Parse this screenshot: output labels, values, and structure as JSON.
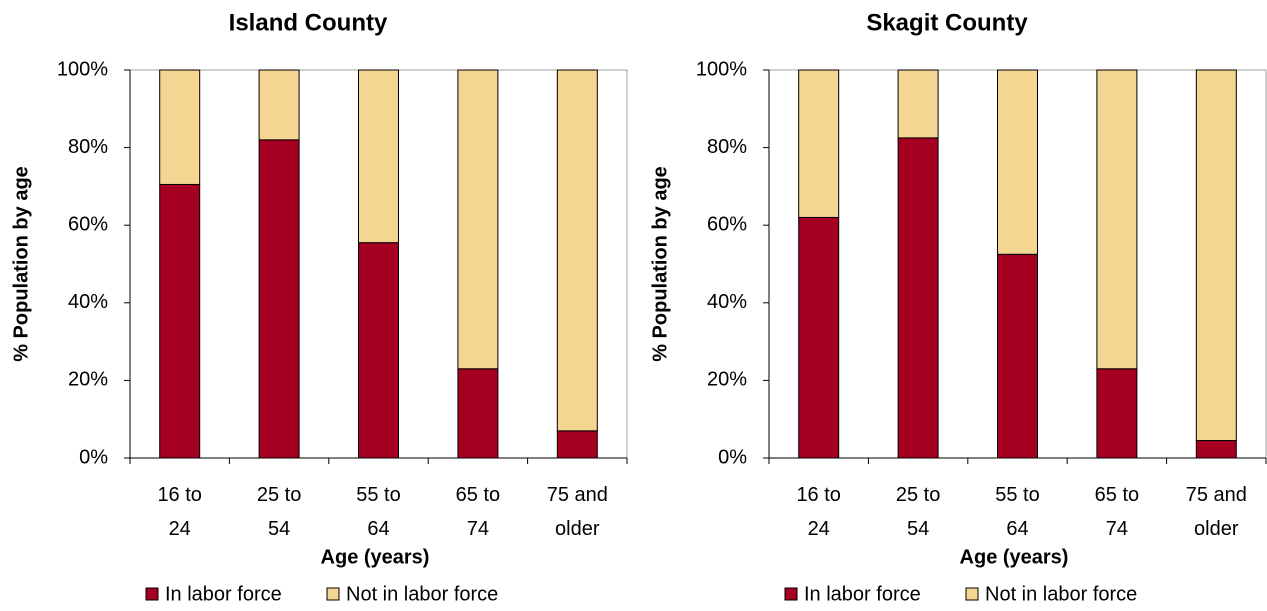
{
  "chart_data": [
    {
      "type": "bar",
      "stacked": true,
      "title": "Island County",
      "x_label": "Age (years)",
      "y_label": "% Population by age",
      "categories": [
        "16 to 24",
        "25 to 54",
        "55 to 64",
        "65 to 74",
        "75 and older"
      ],
      "series": [
        {
          "name": "In labor force",
          "color": "#a50021",
          "values": [
            70.5,
            82,
            55.5,
            23,
            7
          ]
        },
        {
          "name": "Not in labor force",
          "color": "#f5d592",
          "values": [
            29.5,
            18,
            44.5,
            77,
            93
          ]
        }
      ],
      "ylim": [
        0,
        100
      ],
      "yticks": [
        {
          "value": 0,
          "label": "0%"
        },
        {
          "value": 20,
          "label": "20%"
        },
        {
          "value": 40,
          "label": "40%"
        },
        {
          "value": 60,
          "label": "60%"
        },
        {
          "value": 80,
          "label": "80%"
        },
        {
          "value": 100,
          "label": "100%"
        }
      ],
      "legend": "bottom"
    },
    {
      "type": "bar",
      "stacked": true,
      "title": "Skagit County",
      "x_label": "Age (years)",
      "y_label": "% Population by age",
      "categories": [
        "16 to 24",
        "25 to 54",
        "55 to 64",
        "65 to 74",
        "75 and older"
      ],
      "series": [
        {
          "name": "In labor force",
          "color": "#a50021",
          "values": [
            62,
            82.5,
            52.5,
            23,
            4.5
          ]
        },
        {
          "name": "Not in labor force",
          "color": "#f5d592",
          "values": [
            38,
            17.5,
            47.5,
            77,
            95.5
          ]
        }
      ],
      "ylim": [
        0,
        100
      ],
      "yticks": [
        {
          "value": 0,
          "label": "0%"
        },
        {
          "value": 20,
          "label": "20%"
        },
        {
          "value": 40,
          "label": "40%"
        },
        {
          "value": 60,
          "label": "60%"
        },
        {
          "value": 80,
          "label": "80%"
        },
        {
          "value": 100,
          "label": "100%"
        }
      ],
      "legend": "bottom"
    }
  ]
}
